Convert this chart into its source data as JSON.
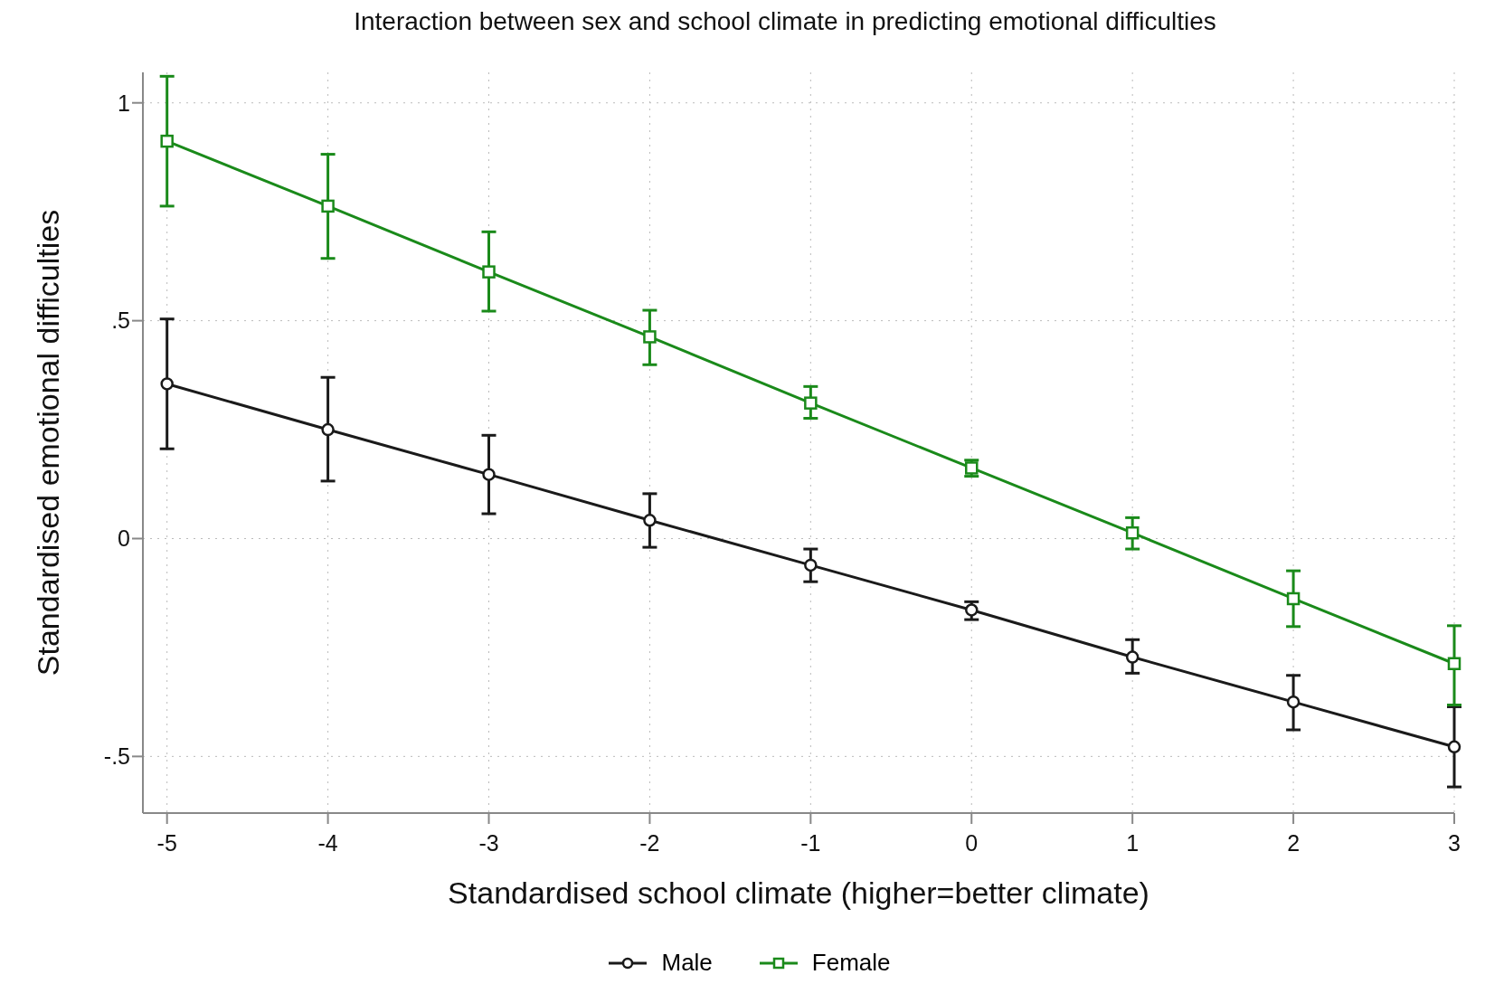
{
  "chart_data": {
    "type": "line",
    "title": "Interaction between sex and school climate in predicting emotional difficulties",
    "xlabel": "Standardised school climate (higher=better climate)",
    "ylabel": "Standardised emotional difficulties",
    "x": [
      -5,
      -4,
      -3,
      -2,
      -1,
      0,
      1,
      2,
      3
    ],
    "xlim": [
      -5.15,
      3
    ],
    "xticks": [
      -5,
      -4,
      -3,
      -2,
      -1,
      0,
      1,
      2,
      3
    ],
    "ylim": [
      -0.63,
      1.07
    ],
    "yticks": [
      {
        "value": -0.5,
        "label": "-.5"
      },
      0,
      {
        "value": 0.5,
        "label": ".5"
      },
      1
    ],
    "grid": true,
    "legend": "bottom",
    "line_style": "solid",
    "series": [
      {
        "name": "Male",
        "color": "#1a1a1a",
        "marker": "circle",
        "values": [
          0.355,
          0.25,
          0.147,
          0.042,
          -0.061,
          -0.164,
          -0.272,
          -0.375,
          -0.478
        ],
        "errors": [
          [
            0.206,
            0.504
          ],
          [
            0.132,
            0.37
          ],
          [
            0.057,
            0.237
          ],
          [
            -0.02,
            0.103
          ],
          [
            -0.099,
            -0.024
          ],
          [
            -0.186,
            -0.145
          ],
          [
            -0.309,
            -0.232
          ],
          [
            -0.439,
            -0.314
          ],
          [
            -0.57,
            -0.386
          ]
        ]
      },
      {
        "name": "Female",
        "color": "#1a8a1a",
        "marker": "square",
        "values": [
          0.912,
          0.763,
          0.612,
          0.463,
          0.311,
          0.162,
          0.013,
          -0.138,
          -0.287
        ],
        "errors": [
          [
            0.763,
            1.061
          ],
          [
            0.643,
            0.882
          ],
          [
            0.522,
            0.704
          ],
          [
            0.399,
            0.524
          ],
          [
            0.276,
            0.349
          ],
          [
            0.143,
            0.18
          ],
          [
            -0.024,
            0.048
          ],
          [
            -0.202,
            -0.074
          ],
          [
            -0.382,
            -0.2
          ]
        ]
      }
    ]
  }
}
